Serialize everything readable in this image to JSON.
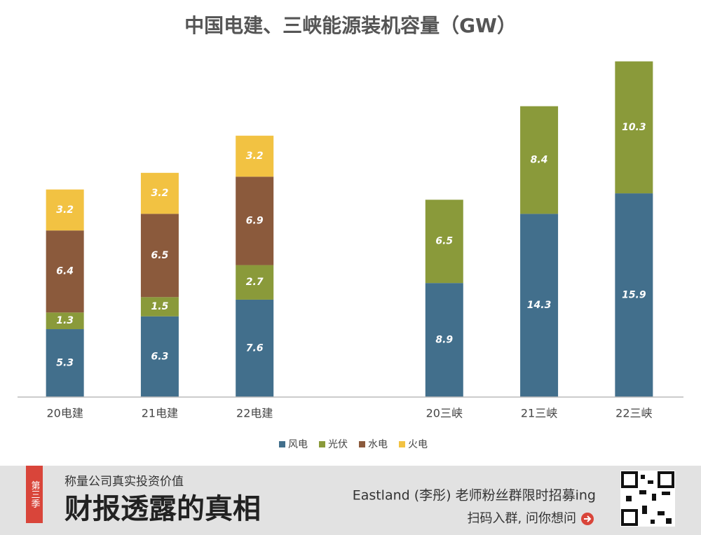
{
  "chart_data": {
    "type": "stacked_bar",
    "title": "中国电建、三峡能源装机容量（GW）",
    "categories": [
      "20电建",
      "21电建",
      "22电建",
      null,
      "20三峡",
      "21三峡",
      "22三峡"
    ],
    "series": [
      {
        "name": "风电",
        "color": "#426f8c",
        "values": [
          5.3,
          6.3,
          7.6,
          null,
          8.9,
          14.3,
          15.9
        ]
      },
      {
        "name": "光伏",
        "color": "#8a9a3a",
        "values": [
          1.3,
          1.5,
          2.7,
          null,
          6.5,
          8.4,
          10.3
        ]
      },
      {
        "name": "水电",
        "color": "#8b5a3c",
        "values": [
          6.4,
          6.5,
          6.9,
          null,
          null,
          null,
          null
        ]
      },
      {
        "name": "火电",
        "color": "#f2c242",
        "values": [
          3.2,
          3.2,
          3.2,
          null,
          null,
          null,
          null
        ]
      }
    ],
    "ylim": [
      0,
      27
    ],
    "legend": "bottom"
  },
  "banner": {
    "tag": "第三季",
    "slogan": "称量公司真实投资价值",
    "headline": "财报透露的真相",
    "promo": "Eastland (李彤) 老师粉丝群限时招募ing",
    "cta": "扫码入群, 问你想问"
  }
}
